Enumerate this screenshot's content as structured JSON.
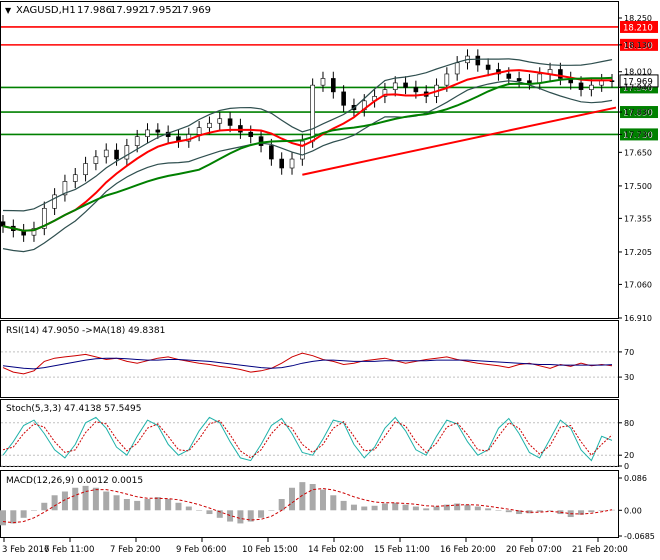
{
  "chart_data": [
    {
      "type": "line",
      "panel": "price",
      "title": "XAGUSD,H1",
      "ohlc": [
        "17.986",
        "17.992",
        "17.952",
        "17.969"
      ],
      "ylim": [
        16.91,
        18.25
      ],
      "yticks": [
        "18.250",
        "18.130",
        "18.010",
        "17.940",
        "17.830",
        "17.730",
        "17.650",
        "17.500",
        "17.355",
        "17.205",
        "17.060",
        "16.910"
      ],
      "horizontal_levels": [
        {
          "value": 18.21,
          "label": "18.210",
          "color": "#ff0000"
        },
        {
          "value": 18.13,
          "label": "18.130",
          "color": "#ff0000"
        },
        {
          "value": 17.94,
          "label": "17.940",
          "color": "#008000"
        },
        {
          "value": 17.83,
          "label": "17.830",
          "color": "#008000"
        },
        {
          "value": 17.73,
          "label": "17.730",
          "color": "#008000"
        }
      ],
      "current_price": {
        "value": 17.969,
        "label": "17.969"
      },
      "close": [
        17.32,
        17.3,
        17.28,
        17.31,
        17.4,
        17.46,
        17.52,
        17.55,
        17.6,
        17.63,
        17.66,
        17.62,
        17.68,
        17.72,
        17.75,
        17.74,
        17.72,
        17.7,
        17.73,
        17.76,
        17.78,
        17.8,
        17.77,
        17.74,
        17.72,
        17.68,
        17.62,
        17.58,
        17.62,
        17.7,
        17.95,
        17.98,
        17.92,
        17.86,
        17.84,
        17.88,
        17.9,
        17.93,
        17.96,
        17.94,
        17.92,
        17.9,
        17.95,
        18.0,
        18.05,
        18.08,
        18.04,
        18.02,
        18.0,
        17.98,
        17.97,
        17.96,
        18.0,
        18.02,
        17.98,
        17.96,
        17.93,
        17.95,
        17.97,
        17.969
      ],
      "series": [
        {
          "name": "",
          "color": "#ff0000"
        },
        {
          "name": "",
          "color": "#008000"
        },
        {
          "name": "",
          "color": "#2f4f4f"
        }
      ]
    },
    {
      "type": "line",
      "panel": "rsi",
      "title": "RSI(14) 47.9050 ->MA(18) 49.8381",
      "ylim": [
        0,
        100
      ],
      "yticks": [
        "70",
        "30"
      ],
      "series": [
        {
          "name": "",
          "color": "#cc0000",
          "values": [
            45,
            38,
            35,
            40,
            55,
            60,
            62,
            64,
            66,
            62,
            58,
            60,
            55,
            52,
            56,
            60,
            62,
            58,
            55,
            52,
            50,
            47,
            45,
            42,
            38,
            40,
            44,
            52,
            62,
            68,
            64,
            58,
            55,
            50,
            52,
            56,
            58,
            60,
            56,
            52,
            55,
            58,
            60,
            62,
            58,
            55,
            52,
            50,
            48,
            45,
            50,
            52,
            48,
            44,
            50,
            47,
            52,
            48,
            50,
            47.9
          ]
        },
        {
          "name": "",
          "color": "#000080",
          "values": [
            48,
            46,
            44,
            43,
            45,
            48,
            51,
            54,
            57,
            59,
            60,
            60,
            59,
            58,
            57,
            57,
            58,
            58,
            57,
            56,
            55,
            53,
            51,
            49,
            47,
            45,
            44,
            45,
            48,
            52,
            55,
            57,
            57,
            56,
            55,
            55,
            55,
            56,
            56,
            56,
            56,
            56,
            57,
            57,
            57,
            57,
            56,
            55,
            54,
            53,
            52,
            51,
            50,
            50,
            49,
            49,
            49,
            49,
            49,
            49.8
          ]
        }
      ]
    },
    {
      "type": "line",
      "panel": "stochastic",
      "title": "Stoch(5,3,3) 47.4138 57.5495",
      "ylim": [
        0,
        100
      ],
      "yticks": [
        "80",
        "20",
        "0"
      ],
      "series": [
        {
          "name": "",
          "color": "#20b2aa",
          "values": [
            20,
            45,
            75,
            85,
            60,
            30,
            15,
            40,
            80,
            90,
            70,
            35,
            20,
            55,
            85,
            75,
            40,
            20,
            30,
            65,
            90,
            80,
            45,
            15,
            10,
            40,
            75,
            88,
            60,
            25,
            20,
            50,
            85,
            80,
            40,
            15,
            35,
            70,
            90,
            65,
            30,
            20,
            55,
            85,
            78,
            45,
            20,
            30,
            70,
            88,
            60,
            25,
            15,
            50,
            85,
            70,
            30,
            10,
            55,
            47.4
          ]
        },
        {
          "name": "",
          "color": "#cc0000",
          "values": [
            30,
            35,
            60,
            78,
            72,
            45,
            25,
            30,
            62,
            82,
            78,
            50,
            28,
            42,
            70,
            78,
            55,
            30,
            28,
            50,
            78,
            84,
            58,
            28,
            15,
            30,
            60,
            80,
            70,
            40,
            25,
            40,
            70,
            82,
            55,
            28,
            30,
            55,
            82,
            74,
            45,
            25,
            42,
            72,
            80,
            58,
            30,
            28,
            55,
            80,
            70,
            40,
            22,
            38,
            72,
            75,
            45,
            20,
            40,
            57.5
          ]
        }
      ]
    },
    {
      "type": "bar",
      "panel": "macd",
      "title": "MACD(12,26,9) 0.0012 0.0015",
      "ylim": [
        -0.0685,
        0.086
      ],
      "yticks": [
        "0.086",
        "0.00",
        "-0.0685"
      ],
      "series": [
        {
          "name": "",
          "color": "#a9a9a9",
          "values": [
            -0.04,
            -0.035,
            -0.02,
            0.0,
            0.02,
            0.04,
            0.05,
            0.06,
            0.065,
            0.06,
            0.05,
            0.04,
            0.03,
            0.025,
            0.03,
            0.035,
            0.03,
            0.02,
            0.01,
            0.0,
            -0.01,
            -0.02,
            -0.03,
            -0.035,
            -0.03,
            -0.02,
            0.0,
            0.03,
            0.06,
            0.075,
            0.07,
            0.055,
            0.04,
            0.025,
            0.015,
            0.01,
            0.012,
            0.018,
            0.02,
            0.015,
            0.01,
            0.005,
            0.01,
            0.015,
            0.018,
            0.015,
            0.01,
            0.005,
            0.0,
            -0.005,
            -0.01,
            -0.008,
            -0.004,
            0.0,
            -0.01,
            -0.018,
            -0.012,
            -0.005,
            0.0,
            0.0012
          ]
        },
        {
          "name": "",
          "color": "#cc0000",
          "values": [
            -0.03,
            -0.033,
            -0.03,
            -0.02,
            -0.005,
            0.012,
            0.028,
            0.04,
            0.05,
            0.055,
            0.055,
            0.05,
            0.043,
            0.036,
            0.032,
            0.032,
            0.031,
            0.028,
            0.022,
            0.015,
            0.006,
            -0.004,
            -0.014,
            -0.022,
            -0.026,
            -0.024,
            -0.016,
            0.0,
            0.02,
            0.04,
            0.055,
            0.058,
            0.054,
            0.046,
            0.036,
            0.028,
            0.022,
            0.02,
            0.02,
            0.018,
            0.016,
            0.012,
            0.011,
            0.012,
            0.014,
            0.015,
            0.014,
            0.011,
            0.007,
            0.003,
            -0.002,
            -0.005,
            -0.005,
            -0.003,
            -0.005,
            -0.009,
            -0.01,
            -0.008,
            -0.004,
            0.0015
          ]
        }
      ]
    }
  ],
  "xaxis_labels": [
    "3 Feb 2017",
    "6 Feb 11:00",
    "7 Feb 20:00",
    "9 Feb 06:00",
    "10 Feb 15:00",
    "14 Feb 02:00",
    "15 Feb 11:00",
    "16 Feb 20:00",
    "20 Feb 07:00",
    "21 Feb 20:00"
  ]
}
